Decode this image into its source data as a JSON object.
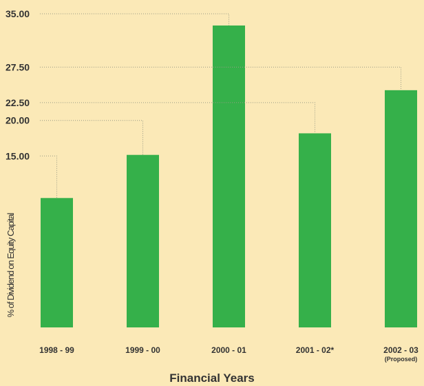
{
  "chart_data": {
    "type": "bar",
    "y_label": "% of Dividend on Equity Capital",
    "x_label": "Financial Years",
    "categories": [
      "1998 - 99",
      "1999 - 00",
      "2000 - 01",
      "2001 - 02*",
      "2002 - 03"
    ],
    "values": [
      15,
      20,
      35,
      22.5,
      27.5
    ],
    "value_labels": [
      "15.00",
      "20.00",
      "35.00",
      "22.50",
      "27.50"
    ],
    "annotation": "(Proposed)",
    "color": "#35b04a",
    "ylim": [
      0,
      35
    ]
  }
}
